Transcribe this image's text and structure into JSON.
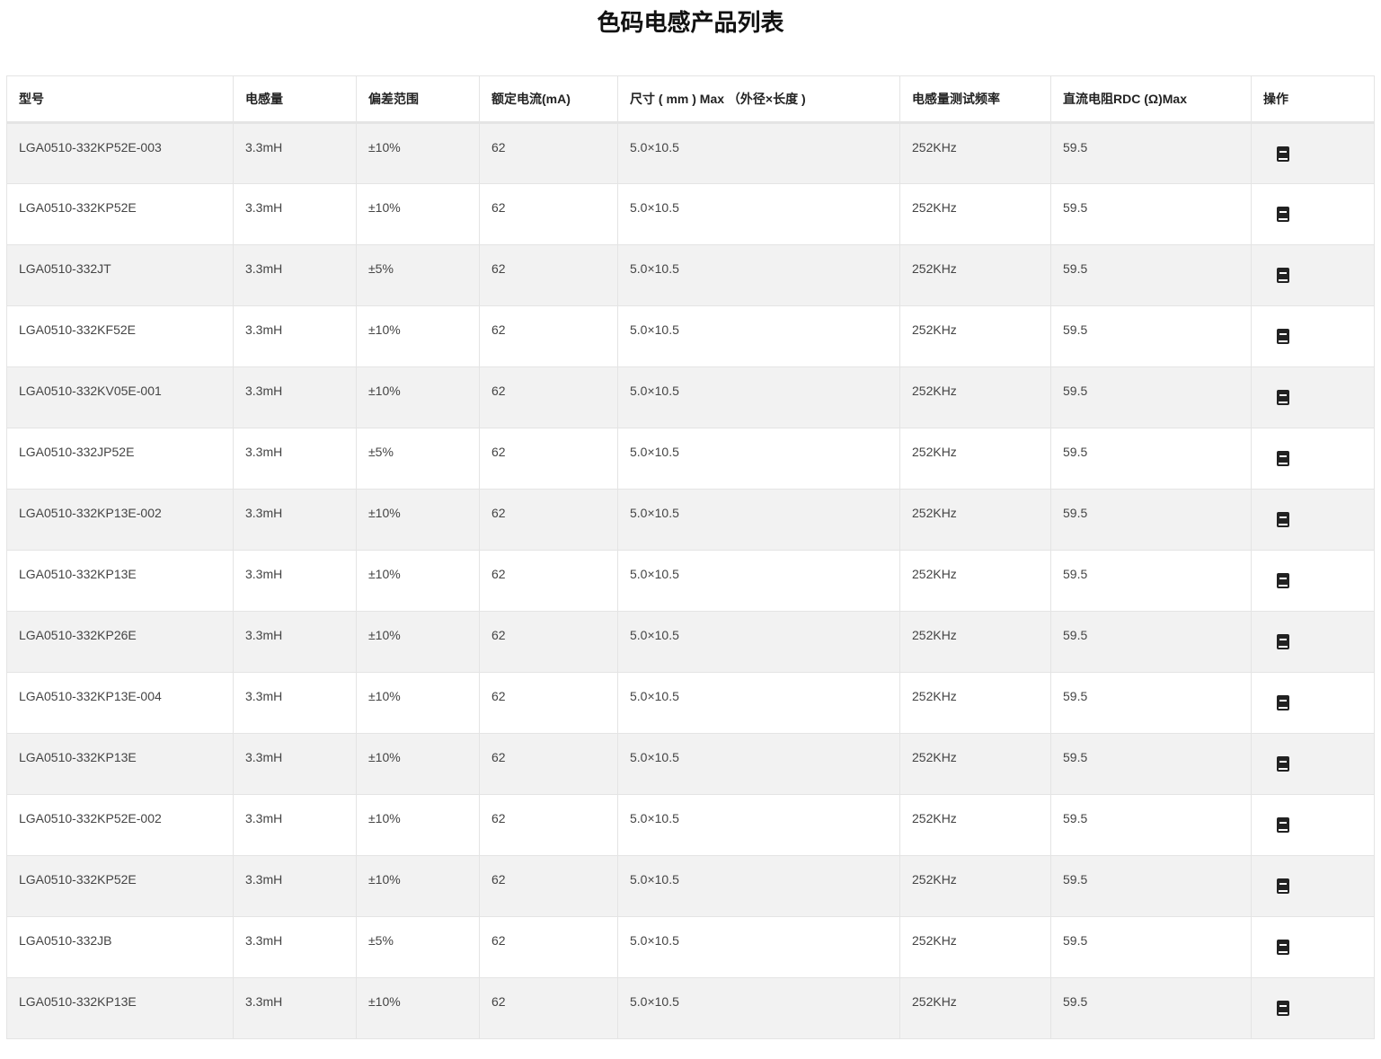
{
  "title": "色码电感产品列表",
  "columns": [
    "型号",
    "电感量",
    "偏差范围",
    "额定电流(mA)",
    "尺寸 ( mm ) Max （外径×长度 )",
    "电感量测试频率",
    "直流电阻RDC (Ω)Max",
    "操作"
  ],
  "action_icon": "book-icon",
  "rows": [
    [
      "LGA0510-332KP52E-003",
      "3.3mH",
      "±10%",
      "62",
      "5.0×10.5",
      "252KHz",
      "59.5"
    ],
    [
      "LGA0510-332KP52E",
      "3.3mH",
      "±10%",
      "62",
      "5.0×10.5",
      "252KHz",
      "59.5"
    ],
    [
      "LGA0510-332JT",
      "3.3mH",
      "±5%",
      "62",
      "5.0×10.5",
      "252KHz",
      "59.5"
    ],
    [
      "LGA0510-332KF52E",
      "3.3mH",
      "±10%",
      "62",
      "5.0×10.5",
      "252KHz",
      "59.5"
    ],
    [
      "LGA0510-332KV05E-001",
      "3.3mH",
      "±10%",
      "62",
      "5.0×10.5",
      "252KHz",
      "59.5"
    ],
    [
      "LGA0510-332JP52E",
      "3.3mH",
      "±5%",
      "62",
      "5.0×10.5",
      "252KHz",
      "59.5"
    ],
    [
      "LGA0510-332KP13E-002",
      "3.3mH",
      "±10%",
      "62",
      "5.0×10.5",
      "252KHz",
      "59.5"
    ],
    [
      "LGA0510-332KP13E",
      "3.3mH",
      "±10%",
      "62",
      "5.0×10.5",
      "252KHz",
      "59.5"
    ],
    [
      "LGA0510-332KP26E",
      "3.3mH",
      "±10%",
      "62",
      "5.0×10.5",
      "252KHz",
      "59.5"
    ],
    [
      "LGA0510-332KP13E-004",
      "3.3mH",
      "±10%",
      "62",
      "5.0×10.5",
      "252KHz",
      "59.5"
    ],
    [
      "LGA0510-332KP13E",
      "3.3mH",
      "±10%",
      "62",
      "5.0×10.5",
      "252KHz",
      "59.5"
    ],
    [
      "LGA0510-332KP52E-002",
      "3.3mH",
      "±10%",
      "62",
      "5.0×10.5",
      "252KHz",
      "59.5"
    ],
    [
      "LGA0510-332KP52E",
      "3.3mH",
      "±10%",
      "62",
      "5.0×10.5",
      "252KHz",
      "59.5"
    ],
    [
      "LGA0510-332JB",
      "3.3mH",
      "±5%",
      "62",
      "5.0×10.5",
      "252KHz",
      "59.5"
    ],
    [
      "LGA0510-332KP13E",
      "3.3mH",
      "±10%",
      "62",
      "5.0×10.5",
      "252KHz",
      "59.5"
    ]
  ]
}
